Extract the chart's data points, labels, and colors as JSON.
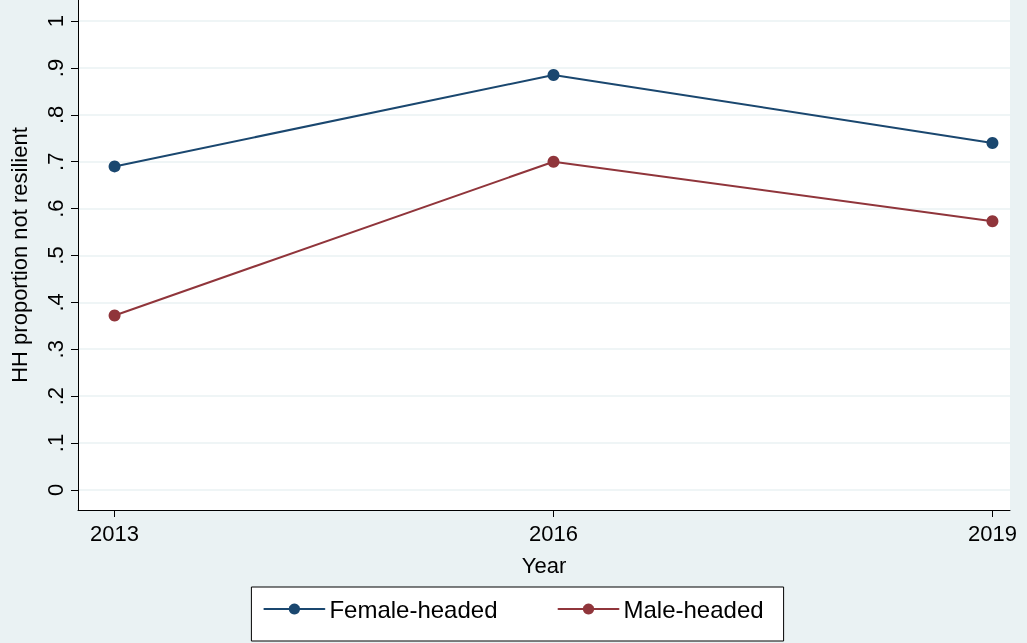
{
  "chart_data": {
    "type": "line",
    "xlabel": "Year",
    "ylabel": "HH proportion not resilient",
    "x": [
      2013,
      2016,
      2019
    ],
    "series": [
      {
        "name": "Female-headed",
        "color": "#1a476f",
        "values": [
          0.69,
          0.885,
          0.74
        ]
      },
      {
        "name": "Male-headed",
        "color": "#90353b",
        "values": [
          0.372,
          0.7,
          0.573
        ]
      }
    ],
    "xlim": [
      2012.75,
      2019.12
    ],
    "xticks": [
      2013,
      2016,
      2019
    ],
    "ylim": [
      -0.043,
      1.045
    ],
    "yticks": [
      0,
      {
        "value": 0.1,
        "label": ".1"
      },
      {
        "value": 0.2,
        "label": ".2"
      },
      {
        "value": 0.3,
        "label": ".3"
      },
      {
        "value": 0.4,
        "label": ".4"
      },
      {
        "value": 0.5,
        "label": ".5"
      },
      {
        "value": 0.6,
        "label": ".6"
      },
      {
        "value": 0.7,
        "label": ".7"
      },
      {
        "value": 0.8,
        "label": ".8"
      },
      {
        "value": 0.9,
        "label": ".9"
      },
      1
    ],
    "grid": "y",
    "legend": "bottom",
    "marker": "circle",
    "line_style": "solid"
  }
}
